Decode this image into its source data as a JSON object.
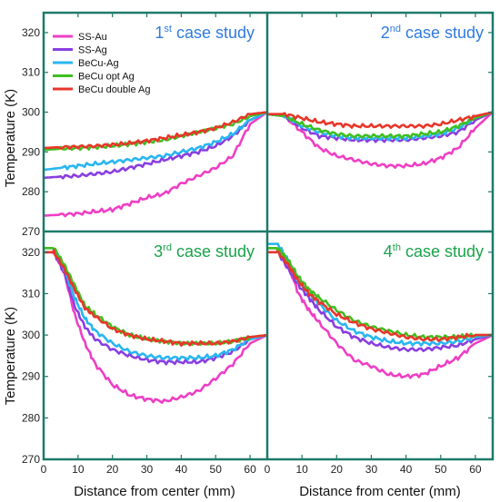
{
  "chart_data": {
    "type": "line",
    "x_label": "Distance from center (mm)",
    "y_label": "Temperature (K)",
    "xlim": [
      0,
      65
    ],
    "ylim": [
      270,
      325
    ],
    "x_ticks": [
      "0",
      "10",
      "20",
      "30",
      "40",
      "50",
      "60"
    ],
    "y_ticks": [
      "270",
      "280",
      "290",
      "300",
      "310",
      "320"
    ],
    "legend": {
      "placement": "top-left of first panel",
      "entries": [
        "SS-Au",
        "SS-Ag",
        "BeCu-Ag",
        "BeCu opt Ag",
        "BeCu double Ag"
      ]
    },
    "colors": {
      "SS-Au": "#ee3fc4",
      "SS-Ag": "#8a3ee0",
      "BeCu-Ag": "#29b6f0",
      "BeCu opt Ag": "#3fbf1f",
      "BeCu double Ag": "#e8362a",
      "frame": "#1e7a6a"
    },
    "panels": [
      {
        "title_main": "1",
        "title_sup": "st",
        "title_rest": " case study",
        "title_color": "#2f7be0",
        "x": [
          0,
          5,
          10,
          15,
          20,
          25,
          30,
          35,
          40,
          45,
          50,
          55,
          60,
          65
        ],
        "series": [
          {
            "name": "SS-Au",
            "values": [
              274,
              274.2,
              274.5,
              275,
              275.5,
              277,
              278.5,
              279.5,
              282,
              284,
              286,
              289,
              297,
              300
            ]
          },
          {
            "name": "SS-Ag",
            "values": [
              283.5,
              283.8,
              284,
              284.5,
              285,
              286,
              287,
              288,
              289,
              290,
              291.5,
              294,
              298,
              300
            ]
          },
          {
            "name": "BeCu-Ag",
            "values": [
              285.5,
              286,
              286.5,
              287,
              287.5,
              288,
              288.5,
              289,
              290,
              291,
              292.5,
              294.5,
              298,
              300
            ]
          },
          {
            "name": "BeCu opt Ag",
            "values": [
              290.5,
              290.8,
              291,
              291.2,
              291.5,
              292,
              292.5,
              293,
              294,
              295,
              296,
              297,
              299,
              300
            ]
          },
          {
            "name": "BeCu double Ag",
            "values": [
              291,
              291.2,
              291.3,
              291.5,
              291.8,
              292.2,
              292.8,
              293.5,
              294.2,
              295,
              296,
              297.5,
              299.5,
              300
            ]
          }
        ]
      },
      {
        "title_main": "2",
        "title_sup": "nd",
        "title_rest": " case study",
        "title_color": "#2f7be0",
        "x": [
          0,
          5,
          10,
          15,
          20,
          25,
          30,
          35,
          40,
          45,
          50,
          55,
          60,
          65
        ],
        "series": [
          {
            "name": "SS-Au",
            "values": [
              299.5,
              299,
              295,
              291,
              289,
              288,
              287,
              286.5,
              286.5,
              287,
              288.5,
              291,
              296,
              300
            ]
          },
          {
            "name": "SS-Ag",
            "values": [
              299.5,
              299,
              296,
              294,
              293.5,
              293,
              293,
              293,
              293,
              293.5,
              294,
              295,
              298,
              300
            ]
          },
          {
            "name": "BeCu-Ag",
            "values": [
              299.5,
              299,
              296.5,
              295,
              294,
              293.5,
              293.5,
              293.5,
              293.5,
              294,
              294.5,
              296,
              298.5,
              300
            ]
          },
          {
            "name": "BeCu opt Ag",
            "values": [
              299.5,
              299,
              297,
              295.5,
              294.5,
              294,
              294,
              294,
              294,
              294.5,
              295,
              296.5,
              298.5,
              300
            ]
          },
          {
            "name": "BeCu double Ag",
            "values": [
              299.5,
              299.5,
              298.5,
              297.5,
              297,
              296.5,
              296.5,
              296.5,
              296.5,
              296.5,
              297,
              298,
              299,
              300
            ]
          }
        ]
      },
      {
        "title_main": "3",
        "title_sup": "rd",
        "title_rest": " case study",
        "title_color": "#1aa34a",
        "x": [
          0,
          3,
          6,
          9,
          12,
          15,
          20,
          25,
          30,
          35,
          40,
          45,
          50,
          55,
          60,
          65
        ],
        "series": [
          {
            "name": "SS-Au",
            "values": [
              320,
              320,
              315,
              305,
              298,
              293,
              288,
              285.5,
              284.5,
              284,
              285,
              286.5,
              289.5,
              293,
              298,
              300
            ]
          },
          {
            "name": "SS-Ag",
            "values": [
              320,
              320,
              315,
              307,
              302,
              299,
              296.5,
              295,
              294,
              293.5,
              293.5,
              293.5,
              294.5,
              296,
              299,
              300
            ]
          },
          {
            "name": "BeCu-Ag",
            "values": [
              321,
              321,
              316,
              309,
              304,
              301,
              298,
              296,
              295,
              294.5,
              294.5,
              294.5,
              295,
              296.5,
              299,
              300
            ]
          },
          {
            "name": "BeCu opt Ag",
            "values": [
              321,
              321,
              317,
              312,
              307,
              305,
              302,
              300,
              299,
              298.5,
              298,
              298,
              298,
              298.5,
              299.5,
              300
            ]
          },
          {
            "name": "BeCu double Ag",
            "values": [
              320,
              320,
              316,
              311,
              306.5,
              304.5,
              301.5,
              300,
              299,
              298.5,
              298,
              298,
              298,
              298.5,
              299.5,
              300
            ]
          }
        ]
      },
      {
        "title_main": "4",
        "title_sup": "th",
        "title_rest": " case study",
        "title_color": "#1aa34a",
        "x": [
          0,
          3,
          6,
          9,
          12,
          15,
          20,
          25,
          30,
          35,
          40,
          45,
          50,
          55,
          60,
          65
        ],
        "series": [
          {
            "name": "SS-Au",
            "values": [
              321,
              321,
              317,
              310,
              306,
              303,
              298,
              294,
              292.5,
              290.5,
              290,
              290.5,
              292.5,
              294.5,
              298,
              300
            ]
          },
          {
            "name": "SS-Ag",
            "values": [
              320,
              320,
              316,
              312,
              309,
              306,
              302,
              299.5,
              298,
              297,
              296.5,
              296.5,
              297,
              297.5,
              299,
              300
            ]
          },
          {
            "name": "BeCu-Ag",
            "values": [
              322,
              322,
              318,
              313,
              310,
              307.5,
              303.5,
              301,
              299.5,
              298.5,
              298,
              298,
              298,
              298.5,
              299.5,
              300
            ]
          },
          {
            "name": "BeCu opt Ag",
            "values": [
              321,
              321,
              318,
              314,
              311,
              309,
              306,
              303.5,
              302,
              301,
              300,
              299.5,
              299.5,
              299.5,
              300,
              300
            ]
          },
          {
            "name": "BeCu double Ag",
            "values": [
              320,
              320,
              317,
              313,
              310,
              308,
              305,
              303,
              301.5,
              300.5,
              299.5,
              299,
              299,
              299.5,
              300,
              300
            ]
          }
        ]
      }
    ]
  }
}
